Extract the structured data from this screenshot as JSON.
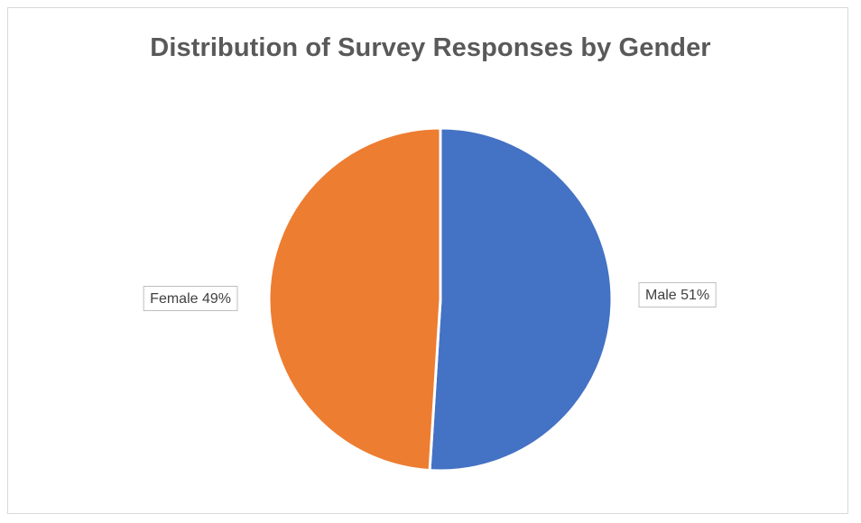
{
  "chart_data": {
    "type": "pie",
    "title": "Distribution of Survey Responses by Gender",
    "categories": [
      "Male",
      "Female"
    ],
    "values": [
      51,
      49
    ],
    "data_labels": [
      "Male 51%",
      "Female 49%"
    ],
    "colors": [
      "#4472c4",
      "#ed7d31"
    ],
    "legend": "none"
  }
}
